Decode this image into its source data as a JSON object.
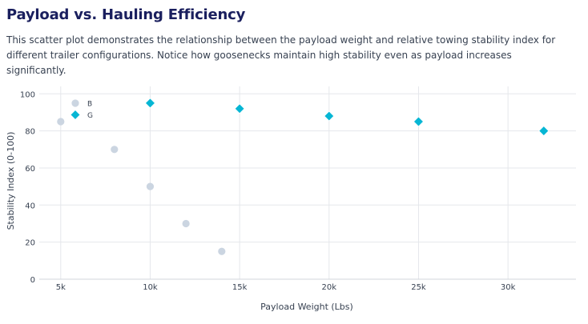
{
  "header": {
    "title": "Payload vs. Hauling Efficiency",
    "description": "This scatter plot demonstrates the relationship between the payload weight and relative towing stability index for different trailer configurations. Notice how goosenecks maintain high stability even as payload increases significantly."
  },
  "colors": {
    "title": "#1a1f5e",
    "bumper_pull": "#cbd5e1",
    "gooseneck": "#06b6d4",
    "grid": "#e5e7eb",
    "axis": "#374151"
  },
  "chart_data": {
    "type": "scatter",
    "title": "",
    "xlabel": "Payload Weight (Lbs)",
    "ylabel": "Stability Index (0-100)",
    "xlim": [
      3800,
      33800
    ],
    "ylim": [
      0,
      104
    ],
    "x_ticks": [
      {
        "value": 5000,
        "label": "5k"
      },
      {
        "value": 10000,
        "label": "10k"
      },
      {
        "value": 15000,
        "label": "15k"
      },
      {
        "value": 20000,
        "label": "20k"
      },
      {
        "value": 25000,
        "label": "25k"
      },
      {
        "value": 30000,
        "label": "30k"
      }
    ],
    "y_ticks": [
      0,
      20,
      40,
      60,
      80,
      100
    ],
    "grid": true,
    "legend_position": "top-left",
    "series": [
      {
        "name": "B",
        "marker": "circle",
        "color": "#cbd5e1",
        "points": [
          {
            "x": 5000,
            "y": 85
          },
          {
            "x": 8000,
            "y": 70
          },
          {
            "x": 10000,
            "y": 50
          },
          {
            "x": 12000,
            "y": 30
          },
          {
            "x": 14000,
            "y": 15
          }
        ]
      },
      {
        "name": "G",
        "marker": "diamond",
        "color": "#06b6d4",
        "points": [
          {
            "x": 10000,
            "y": 95
          },
          {
            "x": 15000,
            "y": 92
          },
          {
            "x": 20000,
            "y": 88
          },
          {
            "x": 25000,
            "y": 85
          },
          {
            "x": 32000,
            "y": 80
          }
        ]
      }
    ]
  }
}
